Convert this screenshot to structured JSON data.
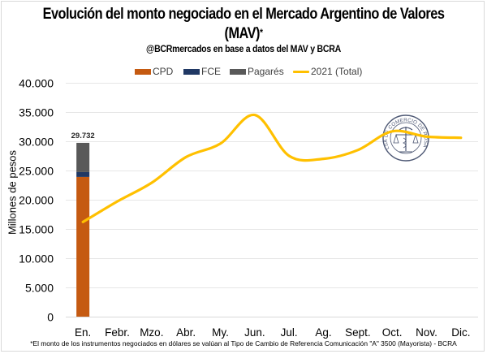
{
  "chart_data": {
    "type": "bar+line",
    "title": "Evolución del monto negociado en el Mercado Argentino de Valores (MAV)",
    "title_asterisk": "*",
    "subtitle": "@BCRmercados en base a datos del MAV y BCRA",
    "ylabel": "Millones de pesos",
    "xlabel": "",
    "ylim": [
      0,
      40000
    ],
    "yticks": [
      0,
      5000,
      10000,
      15000,
      20000,
      25000,
      30000,
      35000,
      40000
    ],
    "ytick_labels": [
      "0",
      "5.000",
      "10.000",
      "15.000",
      "20.000",
      "25.000",
      "30.000",
      "35.000",
      "40.000"
    ],
    "grid": true,
    "legend_position": "top",
    "categories": [
      "En.",
      "Febr.",
      "Mzo.",
      "Abr.",
      "My.",
      "Jun.",
      "Jul.",
      "Ag.",
      "Sept.",
      "Oct.",
      "Nov.",
      "Dic."
    ],
    "stacked_bars": [
      {
        "name": "CPD",
        "color": "#C55A11",
        "values": [
          23900,
          null,
          null,
          null,
          null,
          null,
          null,
          null,
          null,
          null,
          null,
          null
        ]
      },
      {
        "name": "FCE",
        "color": "#203864",
        "values": [
          830,
          null,
          null,
          null,
          null,
          null,
          null,
          null,
          null,
          null,
          null,
          null
        ]
      },
      {
        "name": "Pagarés",
        "color": "#595959",
        "values": [
          5002,
          null,
          null,
          null,
          null,
          null,
          null,
          null,
          null,
          null,
          null,
          null
        ]
      }
    ],
    "bar_totals": [
      {
        "category": "En.",
        "value": 29732,
        "label": "29.732"
      }
    ],
    "series": [
      {
        "name": "2021 (Total)",
        "color": "#FFC000",
        "type": "line",
        "smooth": true,
        "values": [
          16200,
          19700,
          22900,
          27300,
          29600,
          34500,
          27500,
          27000,
          28500,
          31700,
          30800,
          30600
        ]
      }
    ],
    "legend": [
      {
        "label": "CPD",
        "kind": "bar",
        "color": "#C55A11"
      },
      {
        "label": "FCE",
        "kind": "bar",
        "color": "#203864"
      },
      {
        "label": "Pagarés",
        "kind": "bar",
        "color": "#595959"
      },
      {
        "label": "2021 (Total)",
        "kind": "line",
        "color": "#FFC000"
      }
    ],
    "footnote": "*El monto de los instrumentos negociados en dólares se valúan al Tipo de Cambio de Referencia Comunicación \"A\" 3500  (Mayorista)  - BCRA",
    "watermark": {
      "text": "BOLSA DE COMERCIO DE ROSARIO",
      "icon": "bcr-seal-icon"
    }
  }
}
